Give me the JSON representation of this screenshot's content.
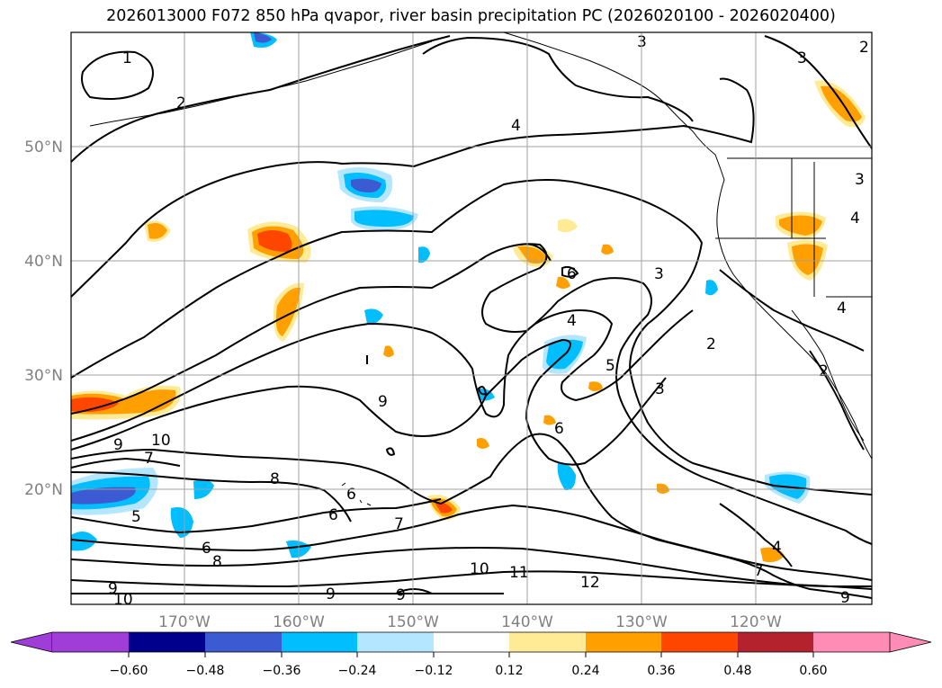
{
  "title": "2026013000 F072 850 hPa qvapor, river basin precipitation PC (2026020100 - 2026020400)",
  "map": {
    "lat_labels": [
      "50°N",
      "40°N",
      "30°N",
      "20°N"
    ],
    "lon_labels": [
      "170°W",
      "160°W",
      "150°W",
      "140°W",
      "130°W",
      "120°W"
    ],
    "grid_lat_values": [
      50,
      40,
      30,
      20
    ],
    "grid_lon_values": [
      -170,
      -160,
      -150,
      -140,
      -130,
      -120
    ],
    "contour_labels": [
      "1",
      "2",
      "4",
      "3",
      "3",
      "2",
      "2",
      "3",
      "4",
      "3",
      "2",
      "4",
      "6",
      "4",
      "5",
      "3",
      "6",
      "6",
      "9",
      "10",
      "9",
      "7",
      "8",
      "6",
      "5",
      "6",
      "8",
      "9",
      "10",
      "7",
      "9",
      "9",
      "10",
      "11",
      "12",
      "4",
      "7",
      "9"
    ],
    "axis_label_color": "#808080"
  },
  "colorbar": {
    "colors": [
      "#a03cd7",
      "#00008c",
      "#3c5ad2",
      "#00beff",
      "#b4e6ff",
      "#ffffff",
      "#ffeb96",
      "#ffa000",
      "#ff4600",
      "#b4232d",
      "#ff8cb4"
    ],
    "tick_labels": [
      "−0.60",
      "−0.48",
      "−0.36",
      "−0.24",
      "−0.12",
      "0.12",
      "0.24",
      "0.36",
      "0.48",
      "0.60"
    ]
  }
}
